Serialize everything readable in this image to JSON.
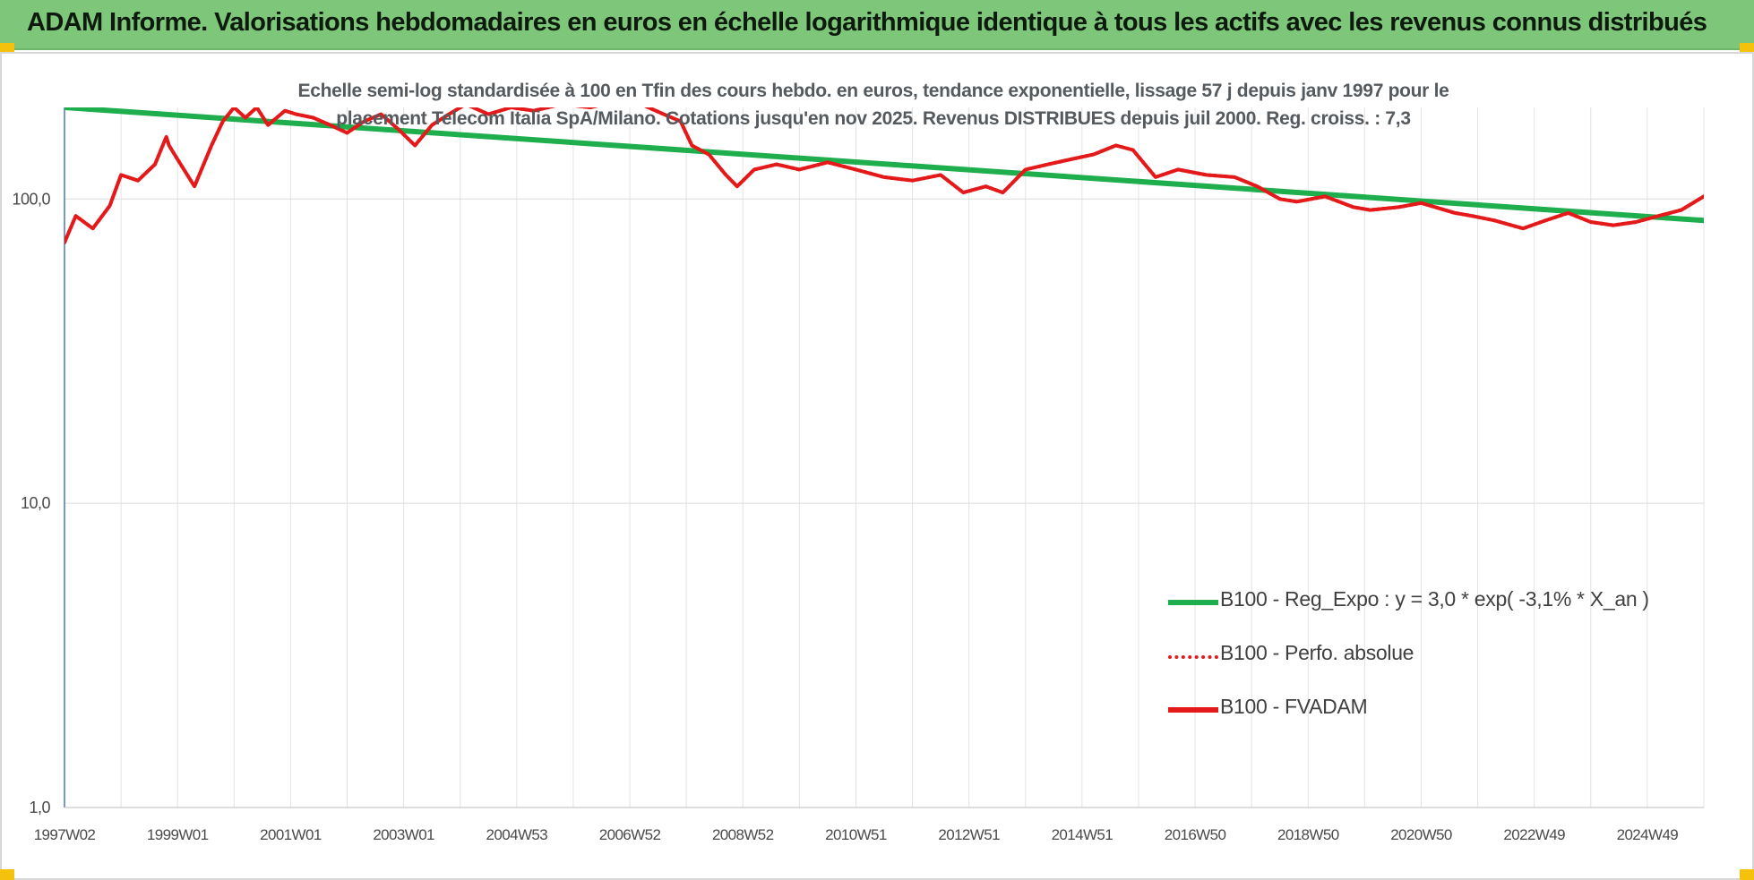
{
  "header": {
    "title": "ADAM Informe. Valorisations hebdomadaires en euros en échelle logarithmique identique à tous les actifs avec les revenus connus distribués"
  },
  "chart_data": {
    "type": "line",
    "title": "Echelle semi-log standardisée à 100 en Tfin des cours hebdo. en euros, tendance exponentielle, lissage 57 j depuis janv 1997 pour le placement Telecom Italia SpA/Milano. Cotations jusqu'en nov 2025. Revenus DISTRIBUES depuis juil 2000. Reg. croiss. : 7,3",
    "yscale": "log",
    "ylim": [
      1,
      200
    ],
    "yticks": [
      "1,0",
      "10,0",
      "100,0"
    ],
    "ytick_values": [
      1,
      10,
      100
    ],
    "xlim": [
      1997.0,
      2026.0
    ],
    "xticks": [
      "1997W02",
      "1999W01",
      "2001W01",
      "2003W01",
      "2004W53",
      "2006W52",
      "2008W52",
      "2010W51",
      "2012W51",
      "2014W51",
      "2016W50",
      "2018W50",
      "2020W50",
      "2022W49",
      "2024W49"
    ],
    "xtick_years": [
      1997.0,
      1999.0,
      2001.0,
      2003.0,
      2005.0,
      2007.0,
      2009.0,
      2011.0,
      2013.0,
      2015.0,
      2017.0,
      2019.0,
      2021.0,
      2023.0,
      2025.0
    ],
    "grid": true,
    "legend_position": "bottom-right",
    "series": [
      {
        "name": "B100 - Reg_Expo : y = 3,0 * exp( -3,1% *  X_an )",
        "style": "solid",
        "color": "#1fae4d",
        "x": [
          1997.0,
          2026.0
        ],
        "y": [
          200,
          85
        ]
      },
      {
        "name": "B100 - Perfo. absolue",
        "style": "dotted",
        "color": "#e41a1a",
        "x": [
          1997.0,
          1997.2,
          1997.5,
          1997.8,
          1998.0,
          1998.3,
          1998.6,
          1998.8,
          1998.85,
          1999.0,
          1999.3,
          1999.6,
          1999.8,
          2000.0,
          2000.2,
          2000.4,
          2000.6,
          2000.9,
          2001.1,
          2001.4,
          2001.7,
          2002.0,
          2002.3,
          2002.6,
          2002.9,
          2003.2,
          2003.5,
          2003.8,
          2004.1,
          2004.5,
          2004.9,
          2005.3,
          2005.8,
          2006.3,
          2006.8,
          2007.2,
          2007.6,
          2007.9,
          2008.1,
          2008.4,
          2008.7,
          2008.9,
          2009.2,
          2009.6,
          2010.0,
          2010.5,
          2011.0,
          2011.5,
          2012.0,
          2012.5,
          2012.9,
          2013.3,
          2013.6,
          2014.0,
          2014.4,
          2014.8,
          2015.2,
          2015.6,
          2015.9,
          2016.3,
          2016.7,
          2017.2,
          2017.7,
          2018.1,
          2018.5,
          2018.8,
          2019.3,
          2019.8,
          2020.1,
          2020.6,
          2021.0,
          2021.6,
          2021.9,
          2022.3,
          2022.8,
          2023.2,
          2023.6,
          2024.0,
          2024.4,
          2024.8,
          2025.2,
          2025.6,
          2026.0
        ],
        "y": [
          72,
          88,
          80,
          95,
          120,
          115,
          130,
          160,
          150,
          135,
          110,
          150,
          180,
          200,
          185,
          200,
          175,
          195,
          190,
          185,
          175,
          165,
          180,
          190,
          170,
          150,
          175,
          190,
          205,
          190,
          200,
          195,
          205,
          200,
          210,
          205,
          190,
          180,
          150,
          140,
          120,
          110,
          125,
          130,
          125,
          132,
          125,
          118,
          115,
          120,
          105,
          110,
          105,
          125,
          130,
          135,
          140,
          150,
          145,
          118,
          125,
          120,
          118,
          110,
          100,
          98,
          102,
          94,
          92,
          94,
          97,
          90,
          88,
          85,
          80,
          85,
          90,
          84,
          82,
          84,
          88,
          92,
          102
        ]
      },
      {
        "name": "B100 - FVADAM",
        "style": "solid",
        "color": "#e41a1a",
        "x": [
          1997.0,
          1997.2,
          1997.5,
          1997.8,
          1998.0,
          1998.3,
          1998.6,
          1998.8,
          1998.85,
          1999.0,
          1999.3,
          1999.6,
          1999.8,
          2000.0,
          2000.2,
          2000.4,
          2000.6,
          2000.9,
          2001.1,
          2001.4,
          2001.7,
          2002.0,
          2002.3,
          2002.6,
          2002.9,
          2003.2,
          2003.5,
          2003.8,
          2004.1,
          2004.5,
          2004.9,
          2005.3,
          2005.8,
          2006.3,
          2006.8,
          2007.2,
          2007.6,
          2007.9,
          2008.1,
          2008.4,
          2008.7,
          2008.9,
          2009.2,
          2009.6,
          2010.0,
          2010.5,
          2011.0,
          2011.5,
          2012.0,
          2012.5,
          2012.9,
          2013.3,
          2013.6,
          2014.0,
          2014.4,
          2014.8,
          2015.2,
          2015.6,
          2015.9,
          2016.3,
          2016.7,
          2017.2,
          2017.7,
          2018.1,
          2018.5,
          2018.8,
          2019.3,
          2019.8,
          2020.1,
          2020.6,
          2021.0,
          2021.6,
          2021.9,
          2022.3,
          2022.8,
          2023.2,
          2023.6,
          2024.0,
          2024.4,
          2024.8,
          2025.2,
          2025.6,
          2026.0
        ],
        "y": [
          72,
          88,
          80,
          95,
          120,
          115,
          130,
          160,
          150,
          135,
          110,
          150,
          180,
          200,
          185,
          200,
          175,
          195,
          190,
          185,
          175,
          165,
          180,
          190,
          170,
          150,
          175,
          190,
          205,
          190,
          200,
          195,
          205,
          200,
          210,
          205,
          190,
          180,
          150,
          140,
          120,
          110,
          125,
          130,
          125,
          132,
          125,
          118,
          115,
          120,
          105,
          110,
          105,
          125,
          130,
          135,
          140,
          150,
          145,
          118,
          125,
          120,
          118,
          110,
          100,
          98,
          102,
          94,
          92,
          94,
          97,
          90,
          88,
          85,
          80,
          85,
          90,
          84,
          82,
          84,
          88,
          92,
          102
        ]
      }
    ]
  }
}
